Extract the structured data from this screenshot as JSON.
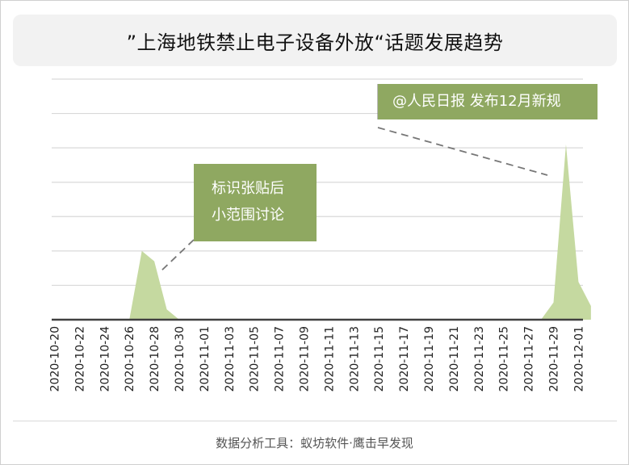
{
  "title": "”上海地铁禁止电子设备外放“话题发展趋势",
  "footer": "数据分析工具：蚁坊软件·鹰击早发现",
  "annotations": [
    {
      "lines": [
        "标识张贴后",
        "小范围讨论"
      ]
    },
    {
      "lines": [
        "@人民日报 发布12月新规"
      ]
    }
  ],
  "colors": {
    "area_fill": "#c5d9a0",
    "callout_bg": "#8fa861",
    "grid": "#d9d9d9",
    "axis": "#404040"
  },
  "chart_data": {
    "type": "area",
    "title": "”上海地铁禁止电子设备外放“话题发展趋势",
    "xlabel": "",
    "ylabel": "",
    "y_tick_labels_shown": false,
    "grid": true,
    "ylim": [
      0,
      7
    ],
    "x": [
      "2020-10-20",
      "2020-10-21",
      "2020-10-22",
      "2020-10-23",
      "2020-10-24",
      "2020-10-25",
      "2020-10-26",
      "2020-10-27",
      "2020-10-28",
      "2020-10-29",
      "2020-10-30",
      "2020-10-31",
      "2020-11-01",
      "2020-11-02",
      "2020-11-03",
      "2020-11-04",
      "2020-11-05",
      "2020-11-06",
      "2020-11-07",
      "2020-11-08",
      "2020-11-09",
      "2020-11-10",
      "2020-11-11",
      "2020-11-12",
      "2020-11-13",
      "2020-11-14",
      "2020-11-15",
      "2020-11-16",
      "2020-11-17",
      "2020-11-18",
      "2020-11-19",
      "2020-11-20",
      "2020-11-21",
      "2020-11-22",
      "2020-11-23",
      "2020-11-24",
      "2020-11-25",
      "2020-11-26",
      "2020-11-27",
      "2020-11-28",
      "2020-11-29",
      "2020-11-30",
      "2020-12-01",
      "2020-12-02"
    ],
    "x_tick_labels": [
      "2020-10-20",
      "2020-10-22",
      "2020-10-24",
      "2020-10-26",
      "2020-10-28",
      "2020-10-30",
      "2020-11-01",
      "2020-11-03",
      "2020-11-05",
      "2020-11-07",
      "2020-11-09",
      "2020-11-11",
      "2020-11-13",
      "2020-11-15",
      "2020-11-17",
      "2020-11-19",
      "2020-11-21",
      "2020-11-23",
      "2020-11-25",
      "2020-11-27",
      "2020-11-29",
      "2020-12-01"
    ],
    "series": [
      {
        "values": [
          0,
          0,
          0,
          0,
          0,
          0,
          0,
          2,
          1.7,
          0.3,
          0,
          0,
          0,
          0,
          0,
          0,
          0,
          0,
          0,
          0,
          0,
          0,
          0,
          0,
          0,
          0,
          0,
          0,
          0,
          0,
          0,
          0,
          0,
          0,
          0,
          0,
          0,
          0,
          0,
          0,
          0.5,
          5.1,
          1.1,
          0.4
        ]
      }
    ]
  }
}
